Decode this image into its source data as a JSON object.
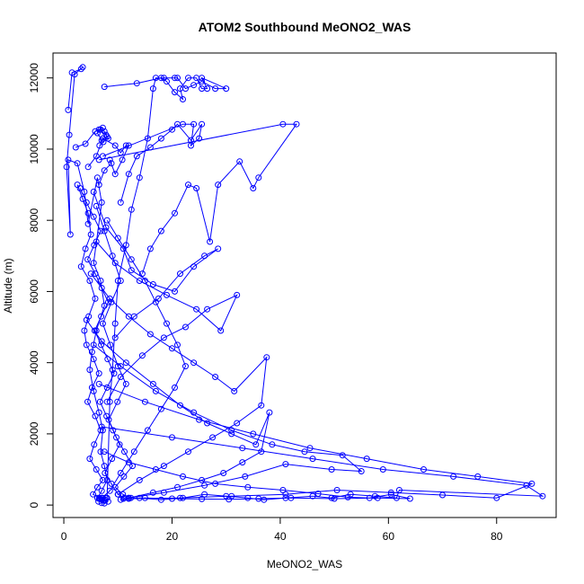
{
  "chart_data": {
    "type": "line",
    "title": "ATOM2 Southbound MeONO2_WAS",
    "xlabel": "MeONO2_WAS",
    "ylabel": "Altitude (m)",
    "xlim": [
      -2,
      91
    ],
    "ylim": [
      -350,
      12700
    ],
    "xticks": [
      0,
      20,
      40,
      60,
      80
    ],
    "yticks": [
      0,
      2000,
      4000,
      6000,
      8000,
      10000,
      12000
    ],
    "tick_labels_x": [
      "0",
      "20",
      "40",
      "60",
      "80"
    ],
    "tick_labels_y": [
      "0",
      "2000",
      "4000",
      "6000",
      "8000",
      "10000",
      "12000"
    ],
    "grid": false,
    "legend": "none",
    "color": "#0000ff",
    "markers": "open-circle",
    "series": [
      {
        "x": [
          0.8,
          1.5,
          3.2,
          3.5,
          2.0,
          1.0,
          0.5,
          1.2,
          0.8,
          2.5,
          3.8,
          4.5,
          6.2,
          7.0,
          5.5,
          6.8,
          7.5,
          6.0,
          5.2,
          4.8,
          5.5,
          6.5,
          7.2,
          6.8,
          7.5,
          8.0,
          7.0,
          6.2,
          7.0,
          7.8,
          7.2,
          6.5,
          7.0,
          7.5,
          8.2,
          7.0,
          7.5
        ],
        "y": [
          11100,
          12150,
          12250,
          12300,
          12100,
          10400,
          9500,
          7600,
          9700,
          9600,
          8800,
          7900,
          9200,
          8500,
          6800,
          6300,
          5600,
          4900,
          4300,
          3800,
          3200,
          2600,
          2100,
          1500,
          1100,
          700,
          400,
          200,
          200,
          200,
          200,
          180,
          150,
          120,
          100,
          60,
          50
        ]
      },
      {
        "x": [
          7.5,
          13.5,
          18.0,
          19.0,
          20.5,
          22.0,
          21.5,
          23.0,
          24.5,
          25.5,
          26.5,
          25.5,
          30.0,
          28.0,
          25.5,
          24.0,
          22.5,
          21.0,
          20.5,
          18.5,
          17.0,
          16.5,
          15.5,
          14.0,
          12.5,
          11.5,
          10.0,
          9.5,
          9.0,
          8.5,
          8.0
        ],
        "y": [
          11750,
          11850,
          12000,
          11900,
          11600,
          11400,
          11700,
          12000,
          12000,
          11700,
          11700,
          12000,
          11700,
          11700,
          11900,
          11800,
          11700,
          12000,
          12000,
          12000,
          12000,
          11700,
          10300,
          9200,
          8300,
          7300,
          6300,
          5100,
          3800,
          2900,
          200
        ]
      },
      {
        "x": [
          4.5,
          6.0,
          7.2,
          9.5,
          10.5,
          11.5,
          12.0,
          10.8,
          9.5,
          8.5,
          8.8,
          7.5,
          6.5
        ],
        "y": [
          9500,
          9800,
          10300,
          10100,
          9900,
          10100,
          10100,
          9700,
          9300,
          9700,
          9600,
          9400,
          9000
        ]
      },
      {
        "x": [
          2.2,
          4.0,
          5.8,
          7.2,
          6.5,
          7.8,
          8.2,
          7.0,
          6.2,
          6.8,
          7.5,
          8.0,
          7.3,
          6.6
        ],
        "y": [
          10050,
          10150,
          10500,
          10600,
          10550,
          10400,
          10300,
          10250,
          10450,
          10550,
          10500,
          10350,
          10200,
          10100
        ]
      },
      {
        "x": [
          7.2,
          22.0,
          24.0,
          23.5,
          25.0,
          25.5,
          23.5,
          21.0,
          20.0,
          18.0,
          16.0,
          13.5,
          12.0,
          10.5
        ],
        "y": [
          9800,
          10700,
          10700,
          10100,
          10300,
          10700,
          10250,
          10700,
          10550,
          10300,
          10050,
          9800,
          9300,
          8500
        ]
      },
      {
        "x": [
          6.5,
          40.5,
          43.0,
          36.0,
          35.0,
          32.5,
          28.5,
          27.0,
          24.5,
          23.0,
          20.5,
          18.0,
          16.0,
          14.5
        ],
        "y": [
          9700,
          10700,
          10700,
          9200,
          8900,
          9650,
          9000,
          7400,
          8900,
          9000,
          8200,
          7700,
          7200,
          6500
        ]
      },
      {
        "x": [
          5.5,
          7.8,
          11.0,
          12.5,
          16.5,
          20.5,
          24.0,
          28.5,
          26.0,
          21.5,
          17.5,
          13.0,
          9.5
        ],
        "y": [
          8800,
          7800,
          7200,
          6600,
          6200,
          6000,
          6700,
          7200,
          7000,
          6500,
          5800,
          5300,
          4700
        ]
      },
      {
        "x": [
          6.0,
          9.5,
          14.0,
          19.0,
          24.5,
          29.0,
          32.0,
          26.5,
          22.5,
          18.5,
          14.5,
          10.5,
          8.0
        ],
        "y": [
          7400,
          6800,
          6300,
          5900,
          5500,
          4900,
          5900,
          5500,
          5000,
          4700,
          4200,
          3600,
          2900
        ]
      },
      {
        "x": [
          5.0,
          8.5,
          12.0,
          16.0,
          20.0,
          24.0,
          28.0,
          31.5,
          37.5,
          36.5,
          32.0,
          27.5,
          23.0,
          18.5,
          14.0,
          10.0
        ],
        "y": [
          6500,
          5800,
          5300,
          4800,
          4400,
          4000,
          3600,
          3200,
          4150,
          2800,
          2300,
          1900,
          1500,
          1100,
          700,
          300
        ]
      },
      {
        "x": [
          4.2,
          7.0,
          11.5,
          16.5,
          21.5,
          26.5,
          31.0,
          35.5,
          38.0,
          36.5,
          33.0,
          29.5,
          25.5,
          21.0,
          16.5,
          12.0
        ],
        "y": [
          5200,
          4600,
          4000,
          3400,
          2800,
          2300,
          2000,
          1700,
          2600,
          1500,
          1200,
          900,
          700,
          500,
          350,
          200
        ]
      },
      {
        "x": [
          5.5,
          10.5,
          17.0,
          24.0,
          31.0,
          38.5,
          44.5,
          51.5,
          55.0,
          49.5,
          41.0,
          33.5,
          26.0,
          18.5,
          12.0
        ],
        "y": [
          4500,
          3900,
          3200,
          2600,
          2100,
          1700,
          1500,
          1400,
          950,
          1000,
          1150,
          800,
          550,
          350,
          200
        ]
      },
      {
        "x": [
          6.5,
          15.0,
          25.0,
          35.0,
          45.5,
          56.0,
          66.5,
          76.5,
          86.5,
          80.0,
          70.0,
          60.5,
          50.5,
          41.0,
          31.0,
          21.5,
          12.0
        ],
        "y": [
          3400,
          2900,
          2400,
          2000,
          1600,
          1300,
          1000,
          800,
          600,
          200,
          280,
          350,
          420,
          300,
          250,
          200,
          180
        ]
      },
      {
        "x": [
          7.0,
          20.0,
          33.0,
          46.0,
          59.0,
          72.0,
          85.5,
          88.5,
          62.0,
          61.5,
          57.5,
          53.0,
          49.5,
          46.0,
          41.0,
          37.0,
          34.0,
          30.0,
          26.0,
          22.0,
          18.0,
          14.0,
          10.5
        ],
        "y": [
          2200,
          1900,
          1600,
          1300,
          1000,
          800,
          550,
          250,
          420,
          200,
          250,
          300,
          200,
          250,
          200,
          150,
          200,
          250,
          300,
          200,
          150,
          200,
          150
        ]
      },
      {
        "x": [
          7.5,
          12.0,
          17.0,
          22.0,
          28.0,
          34.0,
          40.5,
          47.0,
          52.5,
          56.5,
          60.5,
          64.0,
          58.0,
          50.0,
          42.0,
          36.0,
          30.5,
          25.5,
          20.0,
          15.0,
          11.0
        ],
        "y": [
          1500,
          1200,
          1000,
          800,
          600,
          500,
          420,
          320,
          220,
          200,
          300,
          180,
          200,
          180,
          200,
          180,
          160,
          170,
          180,
          200,
          180
        ]
      },
      {
        "x": [
          2.5,
          3.5,
          4.5,
          5.0,
          4.0,
          3.2,
          4.8,
          5.8,
          4.6,
          3.8,
          4.2,
          5.5,
          6.5,
          5.2,
          4.4,
          5.8,
          6.8,
          5.6,
          4.8,
          6.0,
          7.2,
          6.2,
          5.4,
          6.6,
          7.6,
          6.4
        ],
        "y": [
          9000,
          8600,
          8200,
          7600,
          7200,
          6700,
          6300,
          5800,
          5300,
          4900,
          4500,
          4100,
          3700,
          3300,
          2900,
          2500,
          2100,
          1700,
          1300,
          1000,
          700,
          500,
          300,
          200,
          150,
          100
        ]
      },
      {
        "x": [
          3.0,
          4.2,
          5.5,
          6.8,
          5.6,
          4.4,
          5.8,
          7.0,
          8.2,
          6.9,
          5.7,
          6.9,
          8.1,
          9.3,
          8.0,
          6.7,
          7.9,
          9.1,
          10.3,
          8.9,
          7.6,
          8.8,
          10.0,
          11.2
        ],
        "y": [
          8900,
          8500,
          8100,
          7700,
          7300,
          6900,
          6500,
          6100,
          5700,
          5300,
          4900,
          4500,
          4100,
          3700,
          3300,
          2900,
          2500,
          2100,
          1700,
          1300,
          900,
          600,
          300,
          200
        ]
      },
      {
        "x": [
          6.0,
          7.5,
          9.0,
          10.5,
          8.8,
          7.2,
          8.6,
          10.0,
          11.5,
          9.9,
          8.3,
          9.7,
          11.2,
          12.7,
          11.1,
          9.5,
          10.9,
          12.4
        ],
        "y": [
          8400,
          7700,
          7000,
          6300,
          5700,
          5100,
          4500,
          3900,
          3400,
          2900,
          2400,
          1900,
          1500,
          1100,
          800,
          500,
          300,
          200
        ]
      },
      {
        "x": [
          8.0,
          10.0,
          12.5,
          15.0,
          17.0,
          19.0,
          21.0,
          22.5,
          20.5,
          18.0,
          15.5,
          13.0,
          10.5,
          8.5,
          7.0
        ],
        "y": [
          8000,
          7500,
          6900,
          6300,
          5700,
          5100,
          4500,
          3900,
          3300,
          2700,
          2100,
          1500,
          900,
          400,
          200
        ]
      }
    ]
  }
}
